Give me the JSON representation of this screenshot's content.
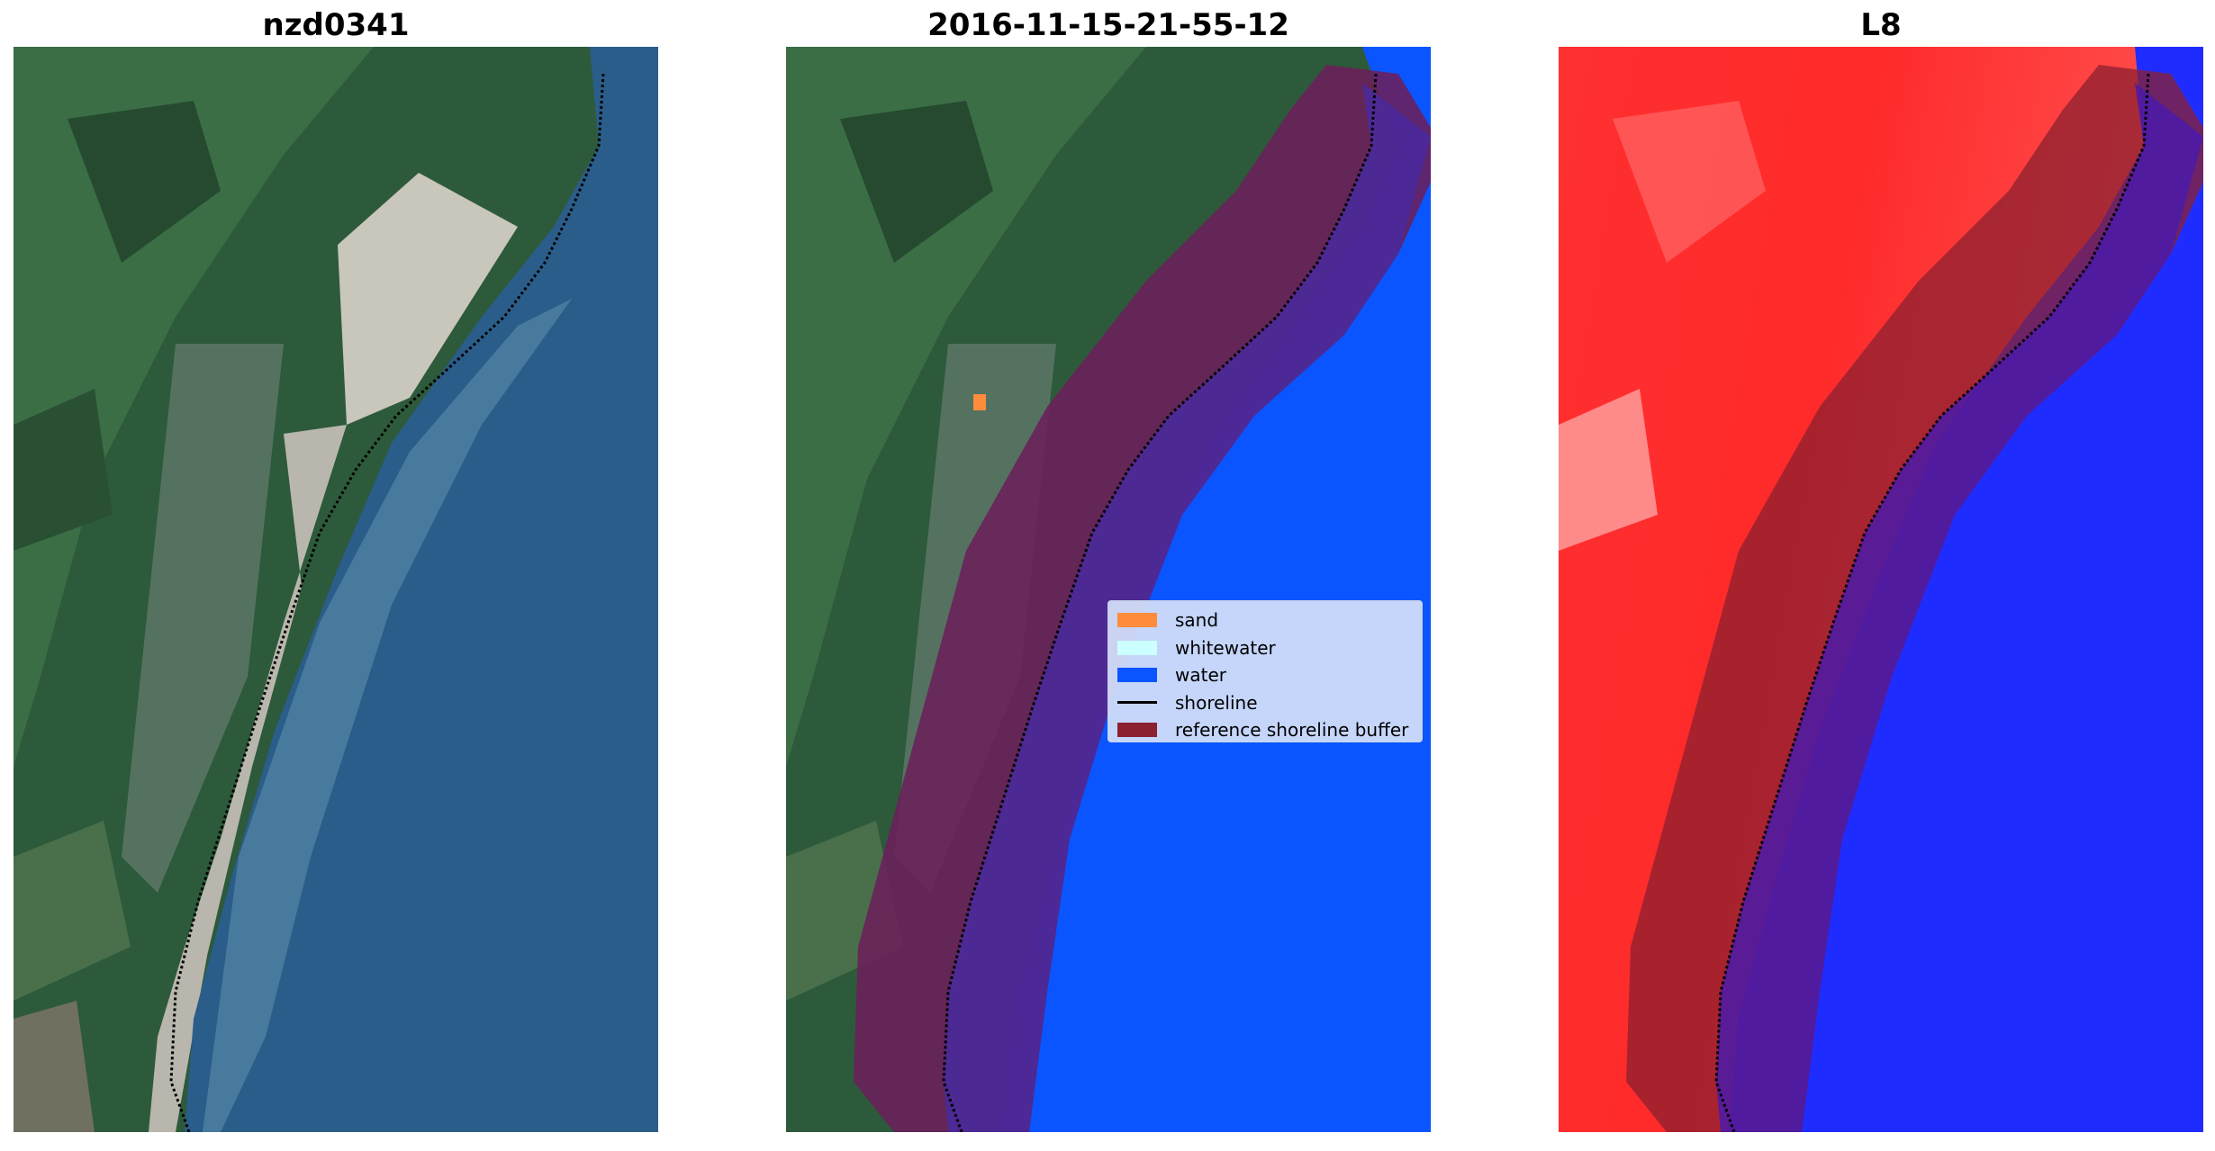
{
  "panels": [
    {
      "title": "nzd0341",
      "image_kind": "RGB satellite image"
    },
    {
      "title": "2016-11-15-21-55-12",
      "image_kind": "classified image"
    },
    {
      "title": "L8",
      "image_kind": "MNDWI image"
    }
  ],
  "legend": {
    "items": [
      {
        "label": "sand",
        "color": "#ff8c3a",
        "kind": "patch"
      },
      {
        "label": "whitewater",
        "color": "#ccffff",
        "kind": "patch"
      },
      {
        "label": "water",
        "color": "#0a55ff",
        "kind": "patch"
      },
      {
        "label": "shoreline",
        "color": "#000000",
        "kind": "line"
      },
      {
        "label": "reference shoreline buffer",
        "color": "#8b2030",
        "kind": "patch"
      }
    ]
  },
  "colors": {
    "land": "#2f5a38",
    "sea": "#2a5a86",
    "water_class": "#0a55ff",
    "buffer": "#8b2030",
    "mndwi_land": "#ff2a2a",
    "mndwi_water": "#1f2cff"
  }
}
